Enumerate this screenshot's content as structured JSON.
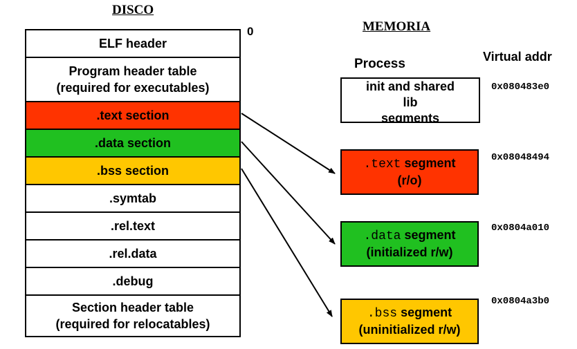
{
  "disk": {
    "title": "DISCO",
    "offset_zero": "0",
    "sections": [
      {
        "label": "ELF header",
        "color": "#ffffff"
      },
      {
        "label": "Program header table\n(required for executables)",
        "color": "#ffffff"
      },
      {
        "label": ".text section",
        "color": "#ff3300"
      },
      {
        "label": ".data section",
        "color": "#20c020"
      },
      {
        "label": ".bss section",
        "color": "#ffc700"
      },
      {
        "label": ".symtab",
        "color": "#ffffff"
      },
      {
        "label": ".rel.text",
        "color": "#ffffff"
      },
      {
        "label": ".rel.data",
        "color": "#ffffff"
      },
      {
        "label": ".debug",
        "color": "#ffffff"
      },
      {
        "label": "Section header table\n(required for relocatables)",
        "color": "#ffffff"
      }
    ]
  },
  "memory": {
    "title": "MEMORIA",
    "process_header": "Process",
    "vaddr_header": "Virtual addr",
    "init_segment": {
      "label": "init and shared\nlib\nsegments",
      "addr": "0x080483e0"
    },
    "text_segment": {
      "code": ".text",
      "label": "segment",
      "sub": "(r/o)",
      "addr": "0x08048494",
      "color": "#ff3300"
    },
    "data_segment": {
      "code": ".data",
      "label": "segment",
      "sub": "(initialized r/w)",
      "addr": "0x0804a010",
      "color": "#20c020"
    },
    "bss_segment": {
      "code": ".bss",
      "label": "segment",
      "sub": "(uninitialized r/w)",
      "addr": "0x0804a3b0",
      "color": "#ffc700"
    }
  }
}
